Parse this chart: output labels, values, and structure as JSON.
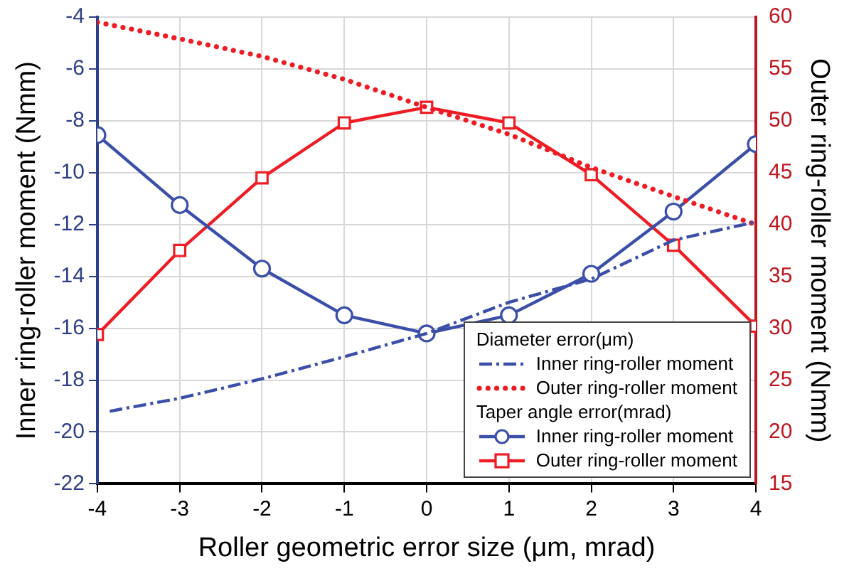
{
  "chart_data": {
    "type": "line",
    "xlabel": "Roller geometric error size (μm, mrad)",
    "ylabel": "Inner ring-roller moment (Nmm)",
    "y2label": "Outer ring-roller moment (Nmm)",
    "annotations": [
      "Diameter error(μm)",
      "Taper angle error(mrad)"
    ],
    "x": [
      -4,
      -3,
      -2,
      -1,
      0,
      1,
      2,
      3,
      4
    ],
    "xlim": [
      -4,
      4
    ],
    "xticks": [
      -4,
      -3,
      -2,
      -1,
      0,
      1,
      2,
      3,
      4
    ],
    "ylim": [
      -22,
      -4
    ],
    "yticks": [
      -22,
      -20,
      -18,
      -16,
      -14,
      -12,
      -10,
      -8,
      -6,
      -4
    ],
    "y2lim": [
      15,
      60
    ],
    "y2ticks": [
      15,
      20,
      25,
      30,
      35,
      40,
      45,
      50,
      55,
      60
    ],
    "grid": true,
    "legend": "bottom right",
    "series": [
      {
        "name": "Inner ring-roller moment",
        "color": "#3b4fa8",
        "line_style": "dashed",
        "marker": "none",
        "x": [
          -3.85,
          -3,
          -2,
          -1,
          0,
          1,
          2,
          3,
          4
        ],
        "values": [
          -19.2,
          -18.7,
          -17.95,
          -17.1,
          -16.2,
          -15.0,
          -14.1,
          -12.6,
          -11.9
        ]
      },
      {
        "name": "Outer ring-roller moment",
        "color": "#ee1c25",
        "line_style": "dotted",
        "marker": "none",
        "axis": "y2",
        "values": [
          59.5,
          57.9,
          56.2,
          54,
          51.3,
          48.7,
          45.5,
          42.7,
          40
        ]
      },
      {
        "name": "Inner ring-roller moment",
        "color": "#3b4fa8",
        "line_style": "solid",
        "marker": "circle",
        "values": [
          -8.55,
          -11.25,
          -13.7,
          -15.5,
          -16.2,
          -15.5,
          -13.9,
          -11.5,
          -8.9
        ]
      },
      {
        "name": "Outer ring-roller moment",
        "color": "#ee1c25",
        "line_style": "solid",
        "marker": "square",
        "axis": "y2",
        "values": [
          29.4,
          37.5,
          44.5,
          49.8,
          51.3,
          49.8,
          44.8,
          38.0,
          30.2
        ]
      }
    ]
  }
}
